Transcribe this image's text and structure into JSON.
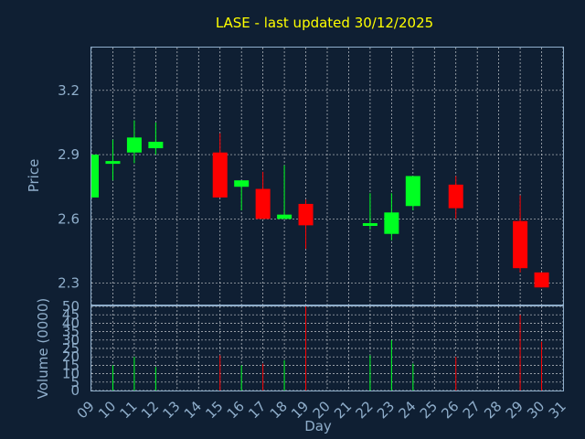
{
  "chart_data": {
    "type": "candlestick",
    "title": "LASE - last updated 30/12/2025",
    "xlabel": "Day",
    "ylabel": "Price",
    "volume_label": "Volume (0000)",
    "colors": {
      "background": "#0f1f33",
      "up": "#00ff22",
      "down": "#ff0000",
      "title": "#ffff00",
      "axis": "#8faecb"
    },
    "x_ticks": [
      "09",
      "10",
      "11",
      "12",
      "13",
      "14",
      "15",
      "16",
      "17",
      "18",
      "19",
      "20",
      "21",
      "22",
      "23",
      "24",
      "25",
      "26",
      "27",
      "28",
      "29",
      "30",
      "31"
    ],
    "price_ticks": [
      "2.3",
      "2.6",
      "2.9",
      "3.2"
    ],
    "price_range": [
      2.2,
      3.4
    ],
    "volume_ticks": [
      "0",
      "5",
      "10",
      "15",
      "20",
      "25",
      "30",
      "35",
      "40",
      "45",
      "50"
    ],
    "volume_range": [
      0,
      50
    ],
    "grid": true,
    "candles": [
      {
        "day": 9,
        "open": 2.7,
        "high": 2.9,
        "low": 2.7,
        "close": 2.9,
        "volume": 0
      },
      {
        "day": 10,
        "open": 2.86,
        "high": 2.97,
        "low": 2.78,
        "close": 2.87,
        "volume": 15
      },
      {
        "day": 11,
        "open": 2.91,
        "high": 3.06,
        "low": 2.86,
        "close": 2.98,
        "volume": 20
      },
      {
        "day": 12,
        "open": 2.93,
        "high": 3.05,
        "low": 2.9,
        "close": 2.96,
        "volume": 14
      },
      {
        "day": 15,
        "open": 2.91,
        "high": 3.0,
        "low": 2.7,
        "close": 2.7,
        "volume": 21
      },
      {
        "day": 16,
        "open": 2.75,
        "high": 2.78,
        "low": 2.64,
        "close": 2.78,
        "volume": 15
      },
      {
        "day": 17,
        "open": 2.74,
        "high": 2.82,
        "low": 2.6,
        "close": 2.6,
        "volume": 16
      },
      {
        "day": 18,
        "open": 2.6,
        "high": 2.85,
        "low": 2.6,
        "close": 2.62,
        "volume": 18
      },
      {
        "day": 19,
        "open": 2.67,
        "high": 2.69,
        "low": 2.46,
        "close": 2.57,
        "volume": 50
      },
      {
        "day": 22,
        "open": 2.57,
        "high": 2.72,
        "low": 2.55,
        "close": 2.58,
        "volume": 21
      },
      {
        "day": 23,
        "open": 2.53,
        "high": 2.72,
        "low": 2.5,
        "close": 2.63,
        "volume": 30
      },
      {
        "day": 24,
        "open": 2.66,
        "high": 2.8,
        "low": 2.64,
        "close": 2.8,
        "volume": 16
      },
      {
        "day": 26,
        "open": 2.76,
        "high": 2.8,
        "low": 2.6,
        "close": 2.65,
        "volume": 20
      },
      {
        "day": 29,
        "open": 2.59,
        "high": 2.71,
        "low": 2.35,
        "close": 2.37,
        "volume": 45
      },
      {
        "day": 30,
        "open": 2.35,
        "high": 2.35,
        "low": 2.28,
        "close": 2.28,
        "volume": 29
      }
    ]
  }
}
